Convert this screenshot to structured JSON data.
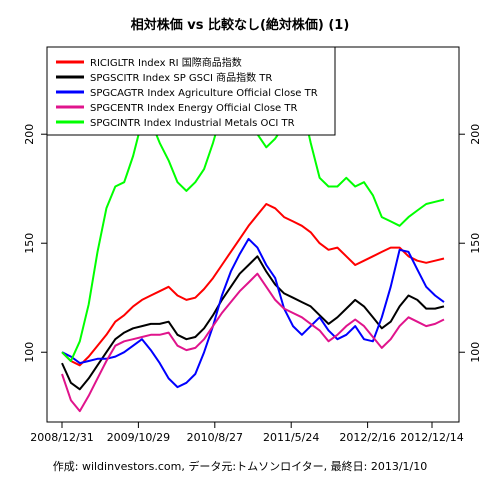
{
  "chart_data": {
    "type": "line",
    "title": "相対株価 vs 比較なし(絶対株価) (1)",
    "caption": "作成: wildinvestors.com, データ元:トムソンロイター, 最終日: 2013/1/10",
    "xlabel": "",
    "ylabel": "",
    "x_ticks": [
      "2008/12/31",
      "2009/10/29",
      "2010/8/27",
      "2011/5/24",
      "2012/2/16",
      "2012/12/14"
    ],
    "y_ticks": [
      100,
      150,
      200
    ],
    "ylim": [
      68,
      240
    ],
    "grid": false,
    "legend_position": "top-left",
    "series": [
      {
        "name": "RICIGLTR Index RI 国際商品指数",
        "color": "#ff0000",
        "values": [
          100,
          96,
          94,
          98,
          103,
          108,
          114,
          117,
          121,
          124,
          126,
          128,
          130,
          126,
          124,
          125,
          129,
          134,
          140,
          146,
          152,
          158,
          163,
          168,
          166,
          162,
          160,
          158,
          155,
          150,
          147,
          148,
          144,
          140,
          142,
          144,
          146,
          148,
          148,
          144,
          142,
          141,
          142,
          143
        ]
      },
      {
        "name": "SPGSCITR Index SP GSCI 商品指数 TR",
        "color": "#000000",
        "values": [
          95,
          86,
          83,
          88,
          94,
          100,
          106,
          109,
          111,
          112,
          113,
          113,
          114,
          108,
          106,
          107,
          111,
          117,
          124,
          130,
          136,
          140,
          144,
          137,
          131,
          127,
          125,
          123,
          121,
          117,
          113,
          116,
          120,
          124,
          121,
          116,
          111,
          114,
          121,
          126,
          124,
          120,
          120,
          121
        ]
      },
      {
        "name": "SPGCAGTR Index Agriculture Official Close TR",
        "color": "#0000ff",
        "values": [
          100,
          98,
          95,
          96,
          97,
          97,
          98,
          100,
          103,
          106,
          101,
          95,
          88,
          84,
          86,
          90,
          100,
          112,
          126,
          137,
          145,
          152,
          148,
          140,
          134,
          120,
          112,
          108,
          112,
          116,
          110,
          106,
          108,
          112,
          106,
          105,
          116,
          130,
          147,
          146,
          138,
          130,
          126,
          123
        ]
      },
      {
        "name": "SPGCENTR Index Energy Official Close TR",
        "color": "#e0148c",
        "values": [
          90,
          78,
          73,
          80,
          88,
          96,
          103,
          105,
          106,
          107,
          108,
          108,
          109,
          103,
          101,
          102,
          106,
          112,
          118,
          123,
          128,
          132,
          136,
          130,
          124,
          120,
          118,
          116,
          113,
          110,
          105,
          108,
          112,
          115,
          112,
          107,
          102,
          106,
          112,
          116,
          114,
          112,
          113,
          115
        ]
      },
      {
        "name": "SPGCINTR Index Industrial Metals OCI TR",
        "color": "#00ff00",
        "values": [
          100,
          96,
          105,
          122,
          146,
          166,
          176,
          178,
          190,
          206,
          206,
          196,
          188,
          178,
          174,
          178,
          184,
          196,
          210,
          212,
          218,
          208,
          200,
          194,
          198,
          204,
          220,
          214,
          196,
          180,
          176,
          176,
          180,
          176,
          178,
          172,
          162,
          160,
          158,
          162,
          165,
          168,
          169,
          170
        ]
      }
    ]
  }
}
